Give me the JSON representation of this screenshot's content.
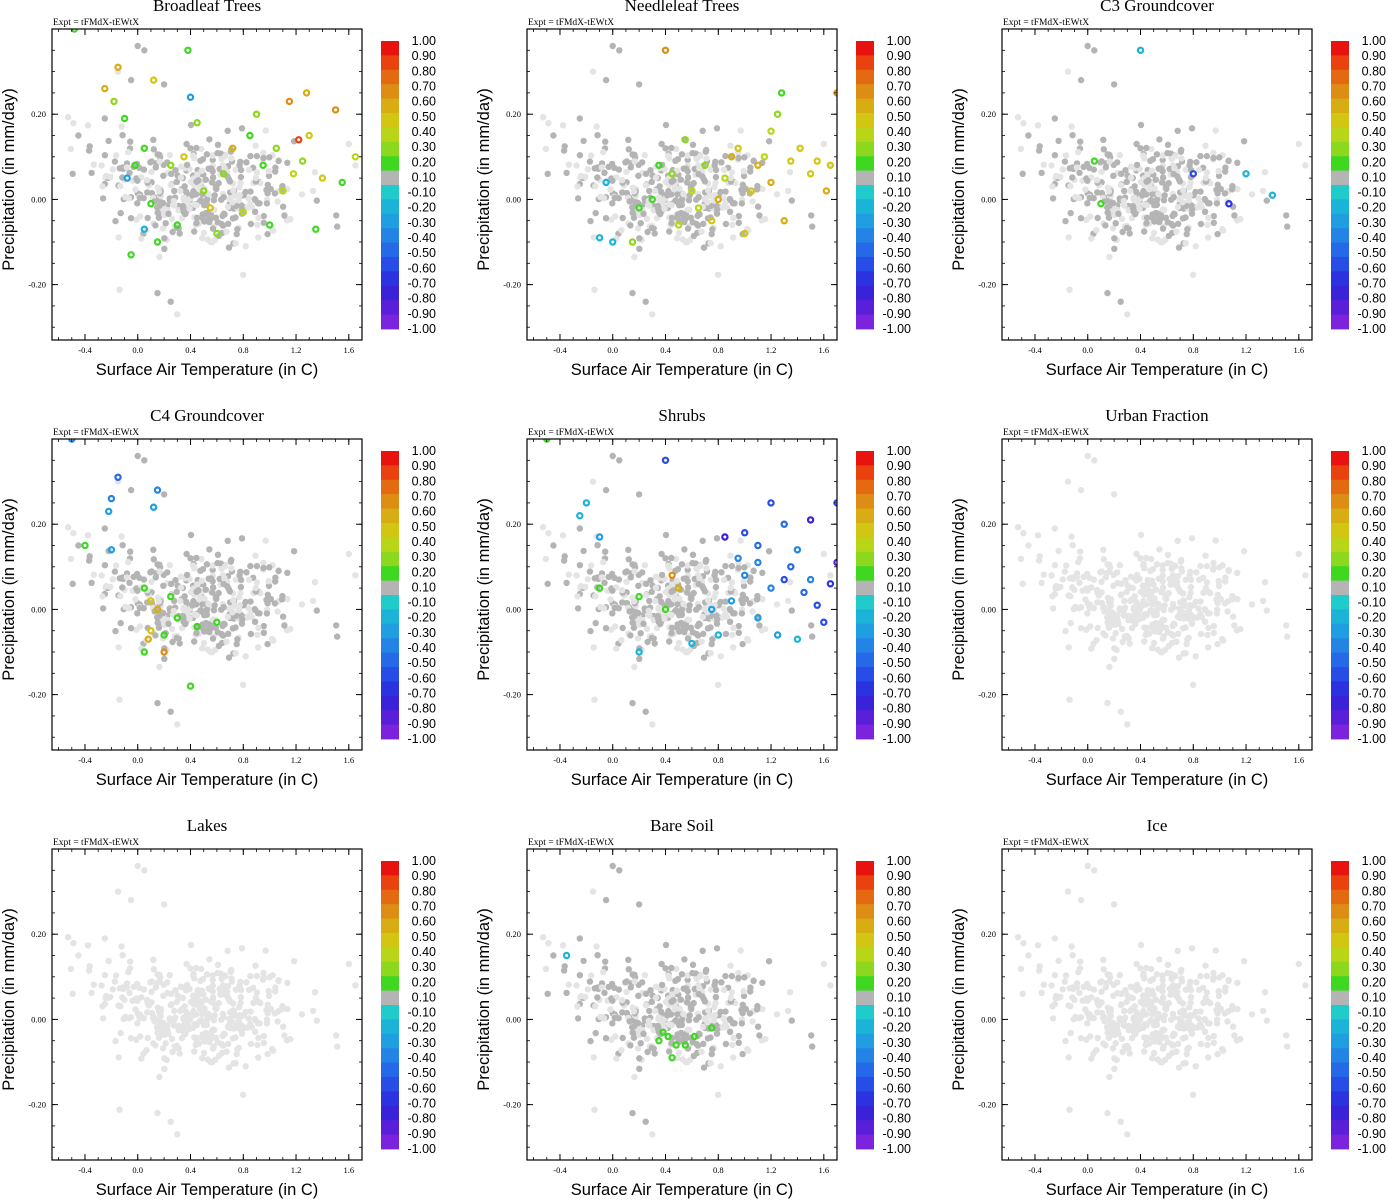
{
  "figure": {
    "expt_label": "Expt = tFMdX-tEWtX",
    "colorbar_labels": [
      "1.00",
      "0.90",
      "0.80",
      "0.70",
      "0.60",
      "0.50",
      "0.40",
      "0.30",
      "0.20",
      "0.10",
      "-0.10",
      "-0.20",
      "-0.30",
      "-0.40",
      "-0.50",
      "-0.60",
      "-0.70",
      "-0.80",
      "-0.90",
      "-1.00"
    ],
    "colorbar_colors": [
      "#e8130f",
      "#e9420f",
      "#e46a12",
      "#de8d14",
      "#d8ac13",
      "#d2c612",
      "#b9d517",
      "#8cd81e",
      "#3ed820",
      "#b4b4b4",
      "#1fcbcb",
      "#1cb3d9",
      "#1f9fe2",
      "#2384e6",
      "#2568e8",
      "#284ce6",
      "#2b33e1",
      "#3a22d8",
      "#5a1fd8",
      "#7c23dd"
    ],
    "unaffected_color": "#e4e4e4",
    "neutral_color": "#b4b4b4"
  },
  "chart_data": [
    {
      "type": "scatter",
      "title": "Broadleaf Trees",
      "xlabel": "Surface Air Temperature (in C)",
      "ylabel": "Precipitation (in mm/day)",
      "xlim": [
        -0.65,
        1.7
      ],
      "ylim": [
        -0.33,
        0.4
      ],
      "xticks": [
        -0.4,
        0.0,
        0.4,
        0.8,
        1.2,
        1.6
      ],
      "xtick_labels": [
        "-0.4",
        "0.0",
        "0.4",
        "0.8",
        "1.2",
        "1.6"
      ],
      "yticks": [
        -0.2,
        0.0,
        0.2
      ],
      "ytick_labels": [
        "-0.20",
        "0.00",
        "0.20"
      ],
      "colorbar_range": [
        -1.0,
        1.0
      ],
      "points": [
        {
          "x": -0.48,
          "y": 0.4,
          "v": 0.15
        },
        {
          "x": 0.38,
          "y": 0.35,
          "v": 0.15
        },
        {
          "x": -0.15,
          "y": 0.31,
          "v": 0.55
        },
        {
          "x": 0.12,
          "y": 0.28,
          "v": 0.45
        },
        {
          "x": -0.25,
          "y": 0.26,
          "v": 0.5
        },
        {
          "x": -0.18,
          "y": 0.23,
          "v": 0.25
        },
        {
          "x": 1.15,
          "y": 0.23,
          "v": 0.6
        },
        {
          "x": 1.28,
          "y": 0.25,
          "v": 0.5
        },
        {
          "x": 1.5,
          "y": 0.21,
          "v": 0.6
        },
        {
          "x": 1.22,
          "y": 0.14,
          "v": 0.85
        },
        {
          "x": 1.3,
          "y": 0.15,
          "v": 0.45
        },
        {
          "x": 0.4,
          "y": 0.24,
          "v": -0.3
        },
        {
          "x": -0.1,
          "y": 0.19,
          "v": 0.15
        },
        {
          "x": 0.05,
          "y": 0.12,
          "v": 0.15
        },
        {
          "x": -0.08,
          "y": 0.05,
          "v": -0.3
        },
        {
          "x": 0.1,
          "y": -0.01,
          "v": 0.15
        },
        {
          "x": 0.25,
          "y": 0.08,
          "v": 0.2
        },
        {
          "x": 0.5,
          "y": 0.02,
          "v": 0.25
        },
        {
          "x": 0.65,
          "y": 0.06,
          "v": 0.2
        },
        {
          "x": 0.8,
          "y": -0.03,
          "v": 0.3
        },
        {
          "x": 0.95,
          "y": 0.08,
          "v": 0.15
        },
        {
          "x": 1.1,
          "y": 0.02,
          "v": 0.35
        },
        {
          "x": 1.25,
          "y": 0.09,
          "v": 0.2
        },
        {
          "x": 1.4,
          "y": 0.05,
          "v": 0.4
        },
        {
          "x": 1.55,
          "y": 0.04,
          "v": 0.15
        },
        {
          "x": 1.65,
          "y": 0.1,
          "v": 0.3
        },
        {
          "x": 0.3,
          "y": -0.06,
          "v": 0.15
        },
        {
          "x": 0.6,
          "y": -0.08,
          "v": 0.2
        },
        {
          "x": 0.15,
          "y": -0.1,
          "v": 0.15
        },
        {
          "x": -0.05,
          "y": -0.13,
          "v": 0.15
        },
        {
          "x": 0.45,
          "y": 0.18,
          "v": 0.2
        },
        {
          "x": 0.85,
          "y": 0.15,
          "v": 0.15
        },
        {
          "x": 1.0,
          "y": -0.06,
          "v": 0.15
        },
        {
          "x": 1.35,
          "y": -0.07,
          "v": 0.15
        },
        {
          "x": 0.72,
          "y": 0.12,
          "v": 0.5
        },
        {
          "x": 0.35,
          "y": 0.1,
          "v": 0.4
        },
        {
          "x": 0.55,
          "y": -0.02,
          "v": 0.45
        },
        {
          "x": 1.05,
          "y": 0.12,
          "v": 0.25
        },
        {
          "x": 0.05,
          "y": -0.07,
          "v": -0.25
        },
        {
          "x": -0.02,
          "y": 0.08,
          "v": 0.15
        },
        {
          "x": 0.9,
          "y": 0.2,
          "v": 0.2
        },
        {
          "x": 1.18,
          "y": 0.06,
          "v": 0.3
        }
      ]
    },
    {
      "type": "scatter",
      "title": "Needleleaf Trees",
      "xlabel": "Surface Air Temperature (in C)",
      "ylabel": "Precipitation (in mm/day)",
      "xlim": [
        -0.65,
        1.7
      ],
      "ylim": [
        -0.33,
        0.4
      ],
      "xticks": [
        -0.4,
        0.0,
        0.4,
        0.8,
        1.2,
        1.6
      ],
      "xtick_labels": [
        "-0.4",
        "0.0",
        "0.4",
        "0.8",
        "1.2",
        "1.6"
      ],
      "yticks": [
        -0.2,
        0.0,
        0.2
      ],
      "ytick_labels": [
        "-0.20",
        "0.00",
        "0.20"
      ],
      "colorbar_range": [
        -1.0,
        1.0
      ],
      "points": [
        {
          "x": 0.4,
          "y": 0.35,
          "v": 0.6
        },
        {
          "x": 1.7,
          "y": 0.25,
          "v": 0.6
        },
        {
          "x": 1.28,
          "y": 0.25,
          "v": 0.15
        },
        {
          "x": 1.25,
          "y": 0.2,
          "v": 0.2
        },
        {
          "x": 0.95,
          "y": 0.12,
          "v": 0.45
        },
        {
          "x": 1.1,
          "y": 0.08,
          "v": 0.5
        },
        {
          "x": 1.2,
          "y": 0.04,
          "v": 0.55
        },
        {
          "x": 1.35,
          "y": 0.09,
          "v": 0.45
        },
        {
          "x": 1.5,
          "y": 0.06,
          "v": 0.4
        },
        {
          "x": 1.62,
          "y": 0.02,
          "v": 0.5
        },
        {
          "x": 0.85,
          "y": 0.05,
          "v": 0.3
        },
        {
          "x": 0.7,
          "y": 0.08,
          "v": 0.25
        },
        {
          "x": 0.6,
          "y": 0.02,
          "v": 0.35
        },
        {
          "x": 0.45,
          "y": 0.06,
          "v": 0.2
        },
        {
          "x": 0.3,
          "y": 0.0,
          "v": 0.15
        },
        {
          "x": 0.75,
          "y": -0.05,
          "v": 0.4
        },
        {
          "x": 1.0,
          "y": -0.08,
          "v": 0.45
        },
        {
          "x": 1.3,
          "y": -0.05,
          "v": 0.5
        },
        {
          "x": 0.2,
          "y": -0.02,
          "v": 0.15
        },
        {
          "x": -0.05,
          "y": 0.04,
          "v": -0.25
        },
        {
          "x": -0.1,
          "y": -0.09,
          "v": -0.25
        },
        {
          "x": 0.15,
          "y": -0.1,
          "v": 0.2
        },
        {
          "x": 0.55,
          "y": 0.14,
          "v": 0.2
        },
        {
          "x": 0.9,
          "y": 0.1,
          "v": 0.55
        },
        {
          "x": 1.05,
          "y": 0.02,
          "v": 0.45
        },
        {
          "x": 1.42,
          "y": 0.12,
          "v": 0.45
        },
        {
          "x": 1.55,
          "y": 0.09,
          "v": 0.4
        },
        {
          "x": 0.65,
          "y": -0.02,
          "v": 0.3
        },
        {
          "x": 0.8,
          "y": 0.0,
          "v": 0.5
        },
        {
          "x": 1.15,
          "y": 0.1,
          "v": 0.35
        },
        {
          "x": 0.35,
          "y": 0.08,
          "v": 0.15
        },
        {
          "x": 0.5,
          "y": -0.06,
          "v": 0.35
        },
        {
          "x": 0.0,
          "y": -0.1,
          "v": -0.25
        },
        {
          "x": 1.65,
          "y": 0.08,
          "v": 0.45
        },
        {
          "x": 1.2,
          "y": 0.16,
          "v": 0.35
        }
      ]
    },
    {
      "type": "scatter",
      "title": "C3 Groundcover",
      "xlabel": "Surface Air Temperature (in C)",
      "ylabel": "Precipitation (in mm/day)",
      "xlim": [
        -0.65,
        1.7
      ],
      "ylim": [
        -0.33,
        0.4
      ],
      "xticks": [
        -0.4,
        0.0,
        0.4,
        0.8,
        1.2,
        1.6
      ],
      "xtick_labels": [
        "-0.4",
        "0.0",
        "0.4",
        "0.8",
        "1.2",
        "1.6"
      ],
      "yticks": [
        -0.2,
        0.0,
        0.2
      ],
      "ytick_labels": [
        "-0.20",
        "0.00",
        "0.20"
      ],
      "colorbar_range": [
        -1.0,
        1.0
      ],
      "points": [
        {
          "x": 0.4,
          "y": 0.35,
          "v": -0.25
        },
        {
          "x": 0.1,
          "y": -0.01,
          "v": 0.15
        },
        {
          "x": 1.07,
          "y": -0.01,
          "v": -0.7
        },
        {
          "x": 1.2,
          "y": 0.06,
          "v": -0.25
        },
        {
          "x": 1.4,
          "y": 0.01,
          "v": -0.25
        },
        {
          "x": 0.05,
          "y": 0.09,
          "v": 0.15
        },
        {
          "x": 0.8,
          "y": 0.06,
          "v": -0.65
        }
      ]
    },
    {
      "type": "scatter",
      "title": "C4 Groundcover",
      "xlabel": "Surface Air Temperature (in C)",
      "ylabel": "Precipitation (in mm/day)",
      "xlim": [
        -0.65,
        1.7
      ],
      "ylim": [
        -0.33,
        0.4
      ],
      "xticks": [
        -0.4,
        0.0,
        0.4,
        0.8,
        1.2,
        1.6
      ],
      "xtick_labels": [
        "-0.4",
        "0.0",
        "0.4",
        "0.8",
        "1.2",
        "1.6"
      ],
      "yticks": [
        -0.2,
        0.0,
        0.2
      ],
      "ytick_labels": [
        "-0.20",
        "0.00",
        "0.20"
      ],
      "colorbar_range": [
        -1.0,
        1.0
      ],
      "points": [
        {
          "x": -0.5,
          "y": 0.4,
          "v": -0.4
        },
        {
          "x": -0.15,
          "y": 0.31,
          "v": -0.5
        },
        {
          "x": 0.15,
          "y": 0.28,
          "v": -0.45
        },
        {
          "x": -0.2,
          "y": 0.26,
          "v": -0.4
        },
        {
          "x": 0.12,
          "y": 0.24,
          "v": -0.3
        },
        {
          "x": -0.22,
          "y": 0.23,
          "v": -0.35
        },
        {
          "x": -0.4,
          "y": 0.15,
          "v": 0.15
        },
        {
          "x": -0.2,
          "y": 0.14,
          "v": -0.3
        },
        {
          "x": 0.05,
          "y": 0.05,
          "v": 0.15
        },
        {
          "x": 0.1,
          "y": 0.02,
          "v": 0.45
        },
        {
          "x": 0.15,
          "y": 0.0,
          "v": 0.5
        },
        {
          "x": 0.1,
          "y": -0.05,
          "v": 0.4
        },
        {
          "x": 0.05,
          "y": -0.1,
          "v": 0.15
        },
        {
          "x": 0.2,
          "y": -0.1,
          "v": 0.6
        },
        {
          "x": 0.3,
          "y": -0.02,
          "v": 0.15
        },
        {
          "x": 0.45,
          "y": -0.04,
          "v": 0.15
        },
        {
          "x": 0.6,
          "y": -0.03,
          "v": 0.15
        },
        {
          "x": 0.4,
          "y": -0.18,
          "v": 0.15
        },
        {
          "x": 0.2,
          "y": -0.06,
          "v": 0.15
        },
        {
          "x": 0.25,
          "y": 0.03,
          "v": 0.15
        },
        {
          "x": 0.08,
          "y": -0.07,
          "v": 0.5
        }
      ]
    },
    {
      "type": "scatter",
      "title": "Shrubs",
      "xlabel": "Surface Air Temperature (in C)",
      "ylabel": "Precipitation (in mm/day)",
      "xlim": [
        -0.65,
        1.7
      ],
      "ylim": [
        -0.33,
        0.4
      ],
      "xticks": [
        -0.4,
        0.0,
        0.4,
        0.8,
        1.2,
        1.6
      ],
      "xtick_labels": [
        "-0.4",
        "0.0",
        "0.4",
        "0.8",
        "1.2",
        "1.6"
      ],
      "yticks": [
        -0.2,
        0.0,
        0.2
      ],
      "ytick_labels": [
        "-0.20",
        "0.00",
        "0.20"
      ],
      "colorbar_range": [
        -1.0,
        1.0
      ],
      "points": [
        {
          "x": -0.5,
          "y": 0.4,
          "v": 0.15
        },
        {
          "x": 0.4,
          "y": 0.35,
          "v": -0.6
        },
        {
          "x": -0.2,
          "y": 0.25,
          "v": -0.25
        },
        {
          "x": -0.25,
          "y": 0.22,
          "v": -0.25
        },
        {
          "x": -0.1,
          "y": 0.17,
          "v": -0.3
        },
        {
          "x": 0.85,
          "y": 0.17,
          "v": -0.8
        },
        {
          "x": 1.2,
          "y": 0.25,
          "v": -0.6
        },
        {
          "x": 1.3,
          "y": 0.2,
          "v": -0.55
        },
        {
          "x": 1.5,
          "y": 0.21,
          "v": -0.8
        },
        {
          "x": 1.7,
          "y": 0.25,
          "v": -0.65
        },
        {
          "x": 1.1,
          "y": 0.15,
          "v": -0.55
        },
        {
          "x": 1.4,
          "y": 0.14,
          "v": -0.45
        },
        {
          "x": 1.0,
          "y": 0.08,
          "v": -0.4
        },
        {
          "x": 1.2,
          "y": 0.05,
          "v": -0.45
        },
        {
          "x": 1.3,
          "y": 0.07,
          "v": -0.6
        },
        {
          "x": 1.45,
          "y": 0.04,
          "v": -0.55
        },
        {
          "x": 1.55,
          "y": 0.01,
          "v": -0.65
        },
        {
          "x": 1.65,
          "y": 0.06,
          "v": -0.7
        },
        {
          "x": 1.7,
          "y": 0.11,
          "v": -0.9
        },
        {
          "x": 0.9,
          "y": 0.02,
          "v": -0.3
        },
        {
          "x": 1.1,
          "y": -0.02,
          "v": -0.35
        },
        {
          "x": 1.25,
          "y": -0.06,
          "v": -0.3
        },
        {
          "x": 1.4,
          "y": -0.07,
          "v": -0.25
        },
        {
          "x": 1.6,
          "y": -0.03,
          "v": -0.6
        },
        {
          "x": 0.8,
          "y": -0.06,
          "v": -0.25
        },
        {
          "x": 0.6,
          "y": -0.08,
          "v": -0.25
        },
        {
          "x": 0.95,
          "y": 0.12,
          "v": -0.45
        },
        {
          "x": 0.75,
          "y": 0.0,
          "v": -0.3
        },
        {
          "x": 0.4,
          "y": 0.0,
          "v": 0.15
        },
        {
          "x": 0.2,
          "y": 0.03,
          "v": 0.15
        },
        {
          "x": -0.1,
          "y": 0.05,
          "v": 0.15
        },
        {
          "x": 0.5,
          "y": 0.05,
          "v": 0.55
        },
        {
          "x": 0.45,
          "y": 0.08,
          "v": 0.6
        },
        {
          "x": 1.1,
          "y": 0.11,
          "v": -0.4
        },
        {
          "x": 0.2,
          "y": -0.1,
          "v": -0.25
        },
        {
          "x": 1.0,
          "y": 0.18,
          "v": -0.6
        },
        {
          "x": 1.35,
          "y": 0.1,
          "v": -0.5
        },
        {
          "x": 1.5,
          "y": 0.07,
          "v": -0.4
        }
      ]
    },
    {
      "type": "scatter",
      "title": "Urban Fraction",
      "xlabel": "Surface Air Temperature (in C)",
      "ylabel": "Precipitation (in mm/day)",
      "xlim": [
        -0.65,
        1.7
      ],
      "ylim": [
        -0.33,
        0.4
      ],
      "xticks": [
        -0.4,
        0.0,
        0.4,
        0.8,
        1.2,
        1.6
      ],
      "xtick_labels": [
        "-0.4",
        "0.0",
        "0.4",
        "0.8",
        "1.2",
        "1.6"
      ],
      "yticks": [
        -0.2,
        0.0,
        0.2
      ],
      "ytick_labels": [
        "-0.20",
        "0.00",
        "0.20"
      ],
      "colorbar_range": [
        -1.0,
        1.0
      ],
      "points": []
    },
    {
      "type": "scatter",
      "title": "Lakes",
      "xlabel": "Surface Air Temperature (in C)",
      "ylabel": "Precipitation (in mm/day)",
      "xlim": [
        -0.65,
        1.7
      ],
      "ylim": [
        -0.33,
        0.4
      ],
      "xticks": [
        -0.4,
        0.0,
        0.4,
        0.8,
        1.2,
        1.6
      ],
      "xtick_labels": [
        "-0.4",
        "0.0",
        "0.4",
        "0.8",
        "1.2",
        "1.6"
      ],
      "yticks": [
        -0.2,
        0.0,
        0.2
      ],
      "ytick_labels": [
        "-0.20",
        "0.00",
        "0.20"
      ],
      "colorbar_range": [
        -1.0,
        1.0
      ],
      "points": []
    },
    {
      "type": "scatter",
      "title": "Bare Soil",
      "xlabel": "Surface Air Temperature (in C)",
      "ylabel": "Precipitation (in mm/day)",
      "xlim": [
        -0.65,
        1.7
      ],
      "ylim": [
        -0.33,
        0.4
      ],
      "xticks": [
        -0.4,
        0.0,
        0.4,
        0.8,
        1.2,
        1.6
      ],
      "xtick_labels": [
        "-0.4",
        "0.0",
        "0.4",
        "0.8",
        "1.2",
        "1.6"
      ],
      "yticks": [
        -0.2,
        0.0,
        0.2
      ],
      "ytick_labels": [
        "-0.20",
        "0.00",
        "0.20"
      ],
      "colorbar_range": [
        -1.0,
        1.0
      ],
      "points": [
        {
          "x": -0.35,
          "y": 0.15,
          "v": -0.25
        },
        {
          "x": 0.38,
          "y": -0.03,
          "v": 0.15
        },
        {
          "x": 0.42,
          "y": -0.04,
          "v": 0.15
        },
        {
          "x": 0.48,
          "y": -0.06,
          "v": 0.15
        },
        {
          "x": 0.55,
          "y": -0.06,
          "v": 0.15
        },
        {
          "x": 0.75,
          "y": -0.02,
          "v": 0.15
        },
        {
          "x": 0.45,
          "y": -0.09,
          "v": 0.15
        },
        {
          "x": 0.35,
          "y": -0.05,
          "v": 0.15
        },
        {
          "x": 0.62,
          "y": -0.04,
          "v": 0.15
        }
      ]
    },
    {
      "type": "scatter",
      "title": "Ice",
      "xlabel": "Surface Air Temperature (in C)",
      "ylabel": "Precipitation (in mm/day)",
      "xlim": [
        -0.65,
        1.7
      ],
      "ylim": [
        -0.33,
        0.4
      ],
      "xticks": [
        -0.4,
        0.0,
        0.4,
        0.8,
        1.2,
        1.6
      ],
      "xtick_labels": [
        "-0.4",
        "0.0",
        "0.4",
        "0.8",
        "1.2",
        "1.6"
      ],
      "yticks": [
        -0.2,
        0.0,
        0.2
      ],
      "ytick_labels": [
        "-0.20",
        "0.00",
        "0.20"
      ],
      "colorbar_range": [
        -1.0,
        1.0
      ],
      "points": []
    }
  ]
}
